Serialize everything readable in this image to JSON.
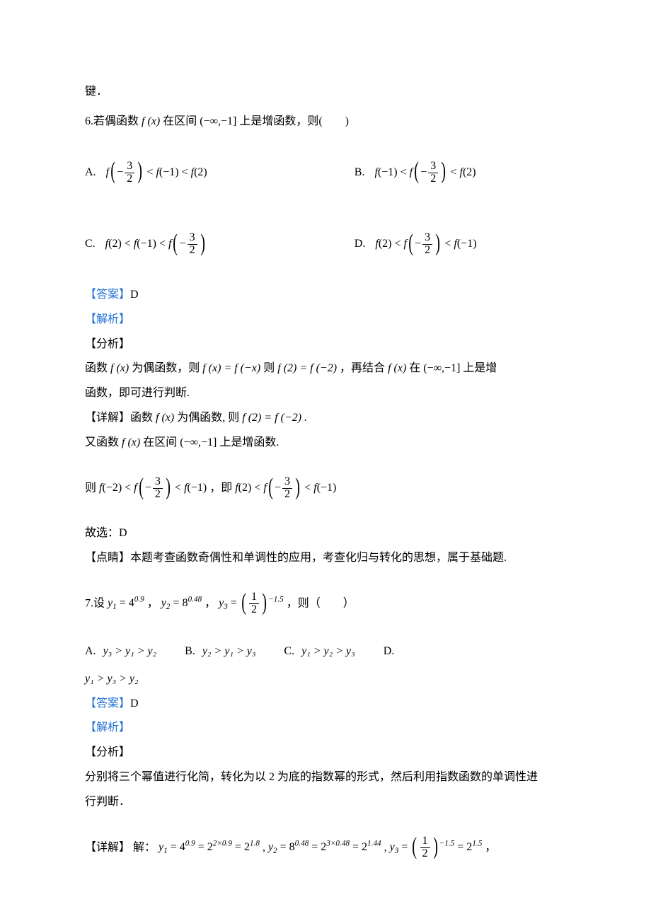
{
  "text": {
    "lead": "键．",
    "q6_stem_pre": "6.若偶函数",
    "q6_stem_mid": "在区间",
    "q6_stem_interval": "(−∞,−1]",
    "q6_stem_post": "上是增函数，则(  )",
    "optA_label": "A.",
    "optB_label": "B.",
    "optC_label": "C.",
    "optD_label": "D.",
    "ans_label": "【答案】",
    "ans_D": "D",
    "jiexi": "【解析】",
    "fenxi": "【分析】",
    "q6_fenxi_1a": "函数",
    "q6_fenxi_1b": "为偶函数，则",
    "q6_fenxi_eq1": "f (x) = f (−x)",
    "q6_fenxi_1c": "则",
    "q6_fenxi_eq2": "f (2) = f (−2)",
    "q6_fenxi_1d": "，再结合",
    "q6_fenxi_1e": "在",
    "q6_fenxi_1f": "上是增",
    "q6_fenxi_2": "函数，即可进行判断.",
    "xiangjie": "【详解】",
    "q6_xj_1a": "函数",
    "q6_xj_1b": "为偶函数, 则",
    "q6_xj_eq": "f (2) = f (−2) .",
    "q6_xj_2a": "又函数",
    "q6_xj_2b": "在区间",
    "q6_xj_2c": "上是增函数.",
    "q6_ze": "则",
    "q6_ji": "，即",
    "q6_gu": "故选：D",
    "dianjing": "【点睛】",
    "q6_dj": "本题考查函数奇偶性和单调性的应用，考查化归与转化的思想，属于基础题.",
    "q7_pre": "7.设",
    "q7_y1": "y",
    "q7_eq1": " = 4",
    "q7_ex1": "0.9",
    "q7_sep": "，",
    "q7_eq2": " = 8",
    "q7_ex2": "0.48",
    "q7_eq3": " = ",
    "q7_ex3": "−1.5",
    "q7_post": "，则（  ）",
    "q7_A": "y₃ > y₁ > y₂",
    "q7_B": "y₂ > y₁ > y₃",
    "q7_C": "y₁ > y₂ > y₃",
    "q7_D": "y₁ > y₃ > y₂",
    "q7_fenxi1": "分别将三个幂值进行化简，转化为以 2 为底的指数幂的形式，然后利用指数函数的单调性进",
    "q7_fenxi2": "行判断．",
    "q7_xj_pre": "解：",
    "q7_xj_sep": ", ",
    "q7_xj_end": "，",
    "fx": "f (x)",
    "num1": "1",
    "num2": "2",
    "num3": "3",
    "half_neg15": "−1.5",
    "exp18": "1.8",
    "exp209": "2×0.9",
    "exp144": "1.44",
    "exp3048": "3×0.48",
    "exp15": "1.5"
  },
  "style": {
    "body_font_size": 16,
    "math_color": "#000000",
    "blue_color": "#1e6fd4",
    "bg": "#ffffff"
  }
}
